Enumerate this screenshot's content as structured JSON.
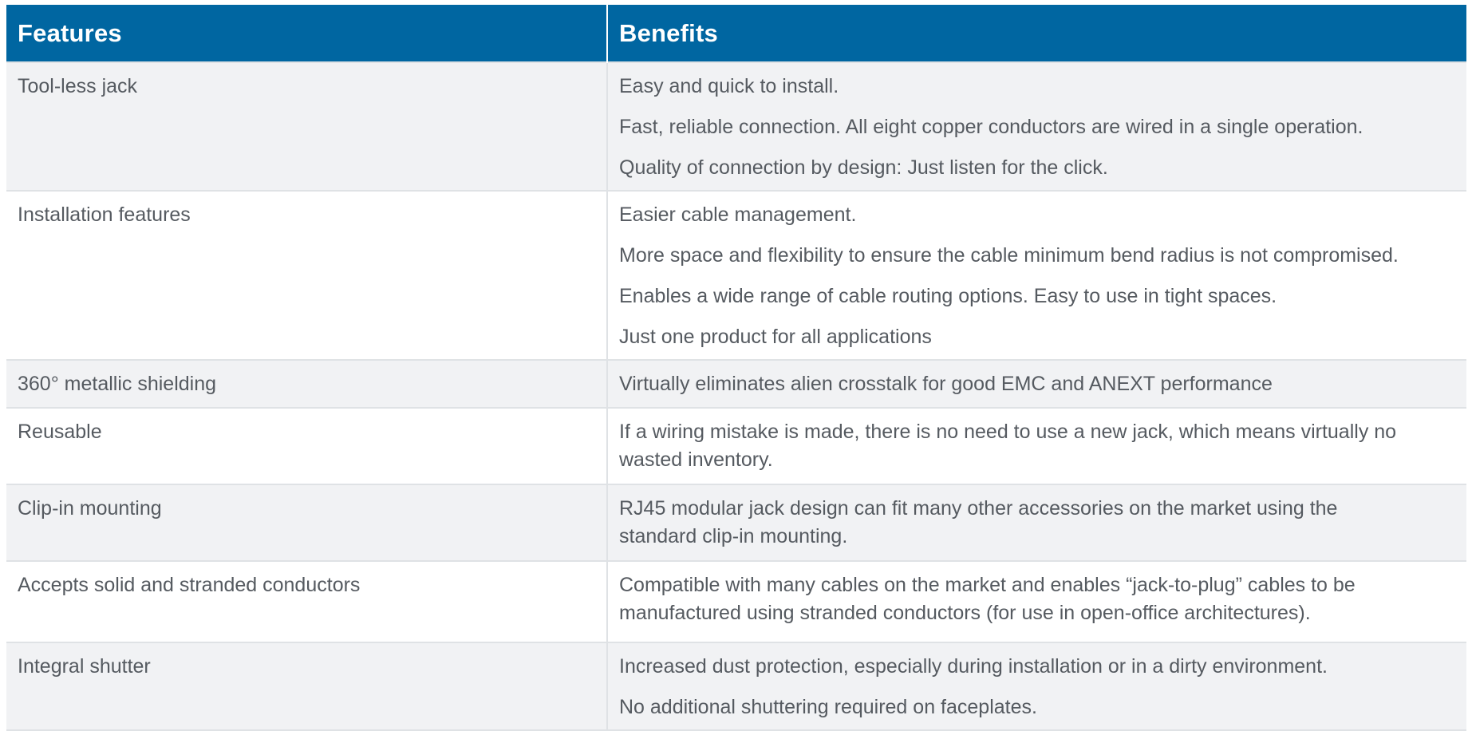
{
  "header": {
    "features_label": "Features",
    "benefits_label": "Benefits"
  },
  "rows": [
    {
      "feature": "Tool-less jack",
      "benefits": [
        "Easy and quick to install.",
        "Fast, reliable connection. All eight copper conductors are wired in a single operation.",
        "Quality of connection by design: Just listen for the click."
      ]
    },
    {
      "feature": "Installation features",
      "benefits": [
        "Easier cable management.",
        "More space and flexibility to ensure the cable minimum bend radius is not compromised.",
        "Enables a wide range of cable routing options. Easy to use in tight spaces.",
        "Just one product for all applications"
      ]
    },
    {
      "feature": "360° metallic shielding",
      "benefits": [
        "Virtually eliminates alien crosstalk for good EMC and ANEXT performance"
      ]
    },
    {
      "feature": "Reusable",
      "benefits": [
        "If a wiring mistake is made, there is no need to use a new jack, which means virtually no wasted inventory."
      ]
    },
    {
      "feature": "Clip-in mounting",
      "benefits": [
        "RJ45 modular jack design can fit many other accessories on the market using the standard clip-in mounting."
      ]
    },
    {
      "feature": "Accepts solid and stranded conductors",
      "benefits": [
        "Compatible with many cables on the market and enables “jack-to-plug” cables to be manufactured using stranded conductors (for use in open-office architectures)."
      ]
    },
    {
      "feature": "Integral shutter",
      "benefits": [
        "Increased dust protection, especially during installation or in a dirty environment.",
        "No additional shuttering required on faceplates."
      ]
    }
  ]
}
